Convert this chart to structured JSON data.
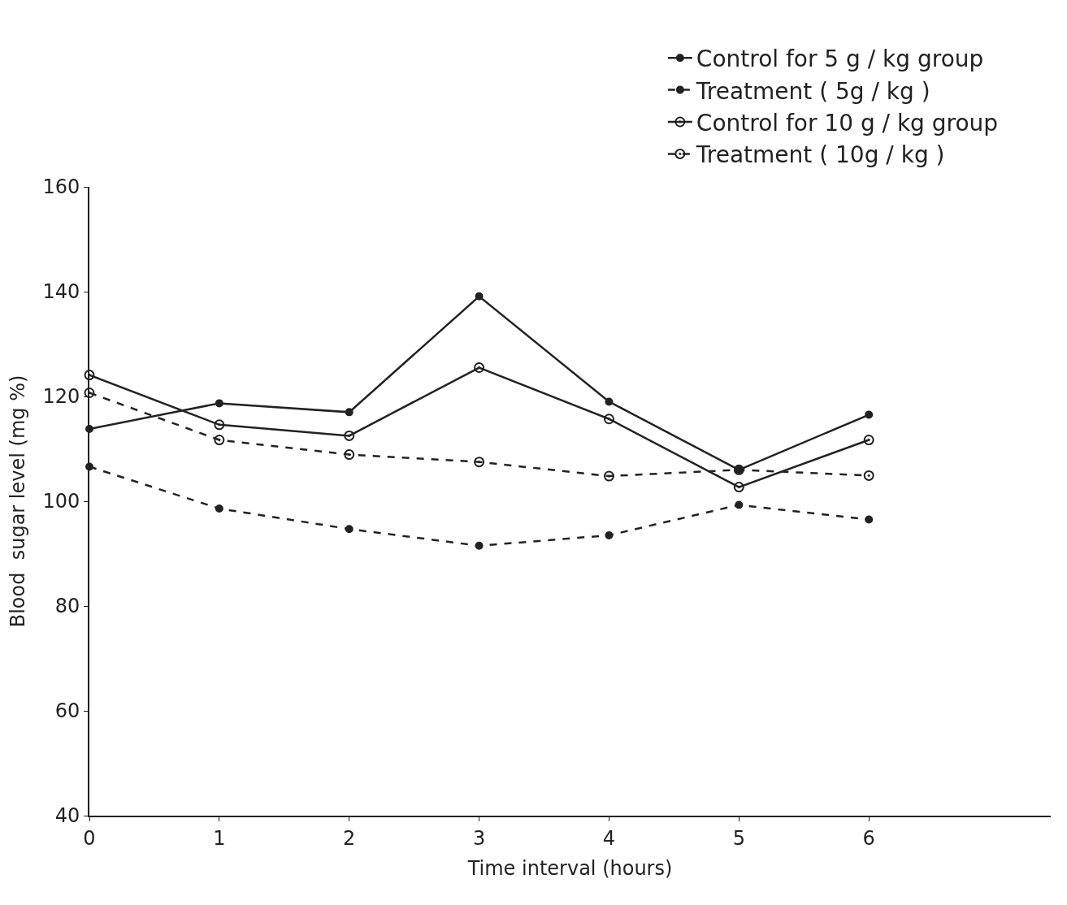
{
  "chart_data": {
    "type": "line",
    "xlabel": "Time interval (hours)",
    "ylabel": "Blood  sugar level (mg %)",
    "x": [
      0,
      1,
      2,
      3,
      4,
      5,
      6
    ],
    "series": [
      {
        "name": "Control for 5 g / kg group",
        "color": "#222222",
        "line_style": "solid",
        "marker": "circle",
        "values": [
          113.8,
          118.7,
          117.0,
          139.1,
          119.0,
          106.0,
          116.5
        ]
      },
      {
        "name": "Treatment ( 5g / kg )",
        "color": "#222222",
        "line_style": "dashed",
        "marker": "circle",
        "values": [
          106.6,
          98.6,
          94.7,
          91.5,
          93.5,
          99.3,
          96.5
        ]
      },
      {
        "name": "Control for 10 g / kg group",
        "color": "#222222",
        "line_style": "solid",
        "marker": "circle-dot",
        "values": [
          124.1,
          114.6,
          112.5,
          125.5,
          115.7,
          102.7,
          111.7
        ]
      },
      {
        "name": "Treatment ( 10g / kg )",
        "color": "#222222",
        "line_style": "dashed",
        "marker": "circle-dot",
        "values": [
          120.7,
          111.7,
          108.9,
          107.5,
          104.8,
          106.0,
          104.9
        ]
      }
    ],
    "xlim": [
      0,
      7.4
    ],
    "xticks": [
      0,
      1,
      2,
      3,
      4,
      5,
      6
    ],
    "ylim": [
      40,
      160
    ],
    "yticks": [
      40,
      60,
      80,
      100,
      120,
      140,
      160
    ],
    "legend": "top right"
  }
}
